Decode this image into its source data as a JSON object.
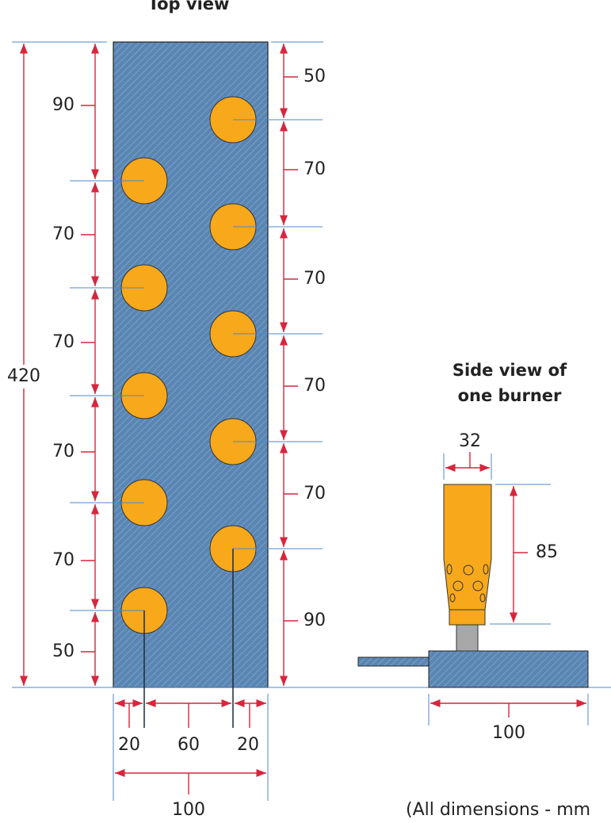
{
  "top_view": {
    "title": "Top view",
    "overall_length": "420",
    "left_spacings": [
      "90",
      "70",
      "70",
      "70",
      "70",
      "50"
    ],
    "right_spacings": [
      "50",
      "70",
      "70",
      "70",
      "70",
      "90"
    ],
    "width_offsets": [
      "20",
      "60",
      "20"
    ],
    "overall_width": "100"
  },
  "side_view": {
    "title_lines": [
      "Side view of",
      "one burner"
    ],
    "burner_diameter": "32",
    "burner_height": "85",
    "base_width": "100"
  },
  "note": "(All dimensions - mm"
}
